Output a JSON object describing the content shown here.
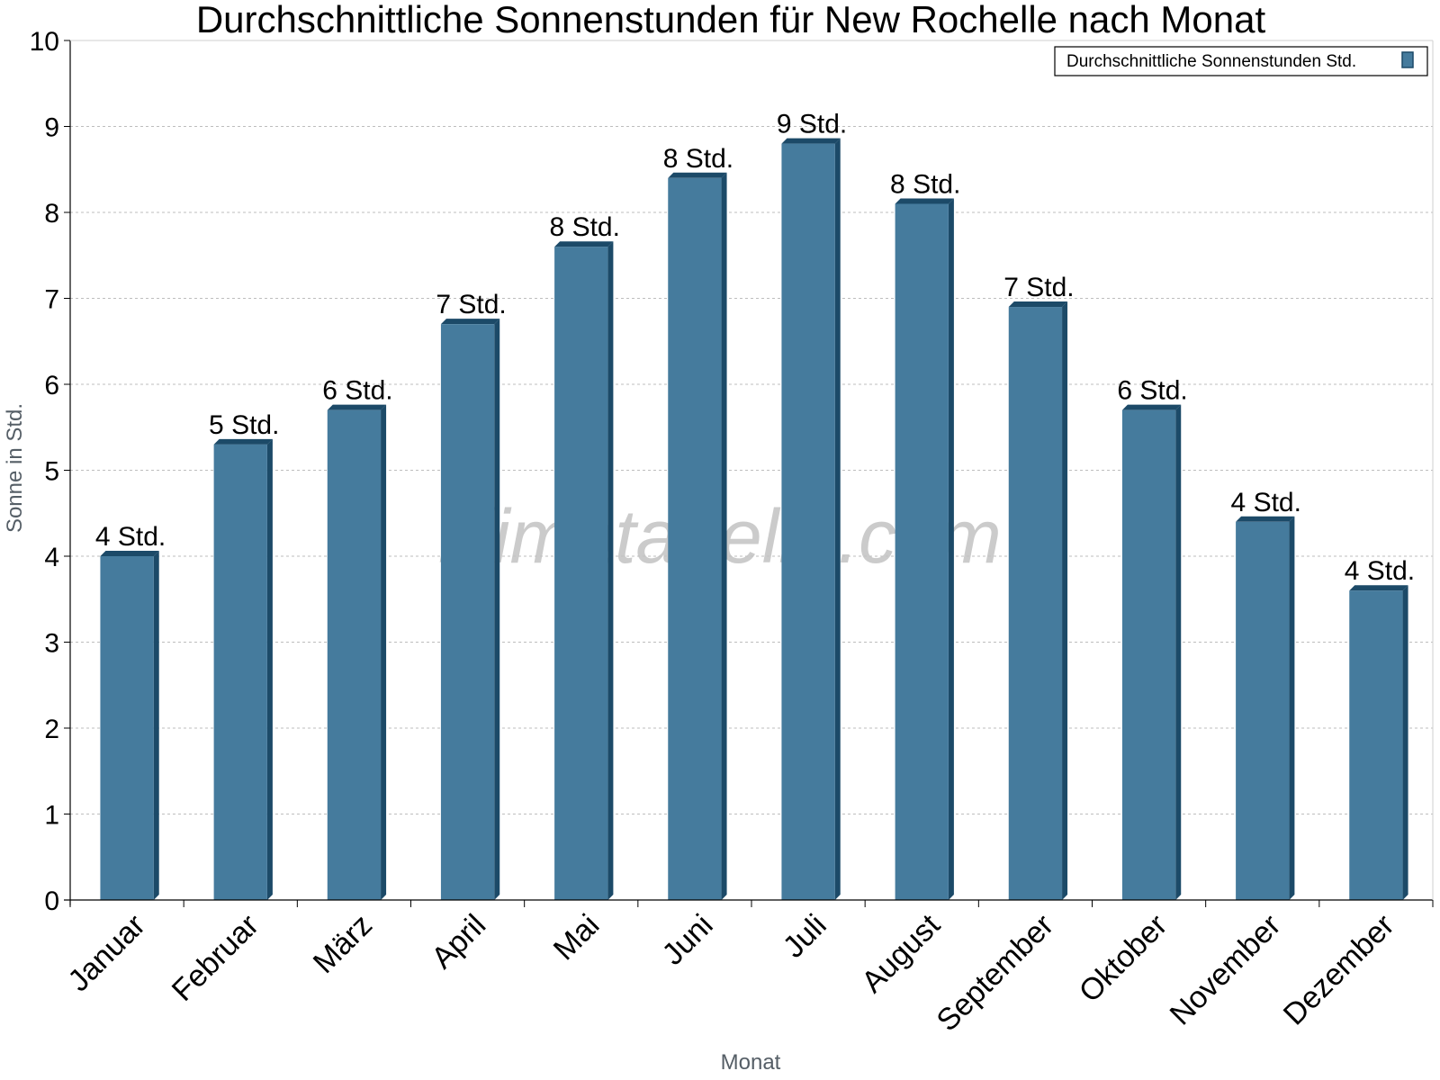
{
  "chart_data": {
    "type": "bar",
    "title": "Durchschnittliche Sonnenstunden für New Rochelle nach Monat",
    "xlabel": "Monat",
    "ylabel": "Sonne in Std.",
    "ylim": [
      0,
      10
    ],
    "yticks": [
      0,
      1,
      2,
      3,
      4,
      5,
      6,
      7,
      8,
      9,
      10
    ],
    "grid": true,
    "legend_position": "top-right",
    "categories": [
      "Januar",
      "Februar",
      "März",
      "April",
      "Mai",
      "Juni",
      "Juli",
      "August",
      "September",
      "Oktober",
      "November",
      "Dezember"
    ],
    "series": [
      {
        "name": "Durchschnittliche Sonnenstunden Std.",
        "color": "#457b9d",
        "values": [
          4.0,
          5.3,
          5.7,
          6.7,
          7.6,
          8.4,
          8.8,
          8.1,
          6.9,
          5.7,
          4.4,
          3.6
        ],
        "data_labels": [
          "4 Std.",
          "5 Std.",
          "6 Std.",
          "7 Std.",
          "8 Std.",
          "8 Std.",
          "9 Std.",
          "8 Std.",
          "7 Std.",
          "6 Std.",
          "4 Std.",
          "4 Std."
        ]
      }
    ],
    "watermark": "klimatabelle.com"
  }
}
